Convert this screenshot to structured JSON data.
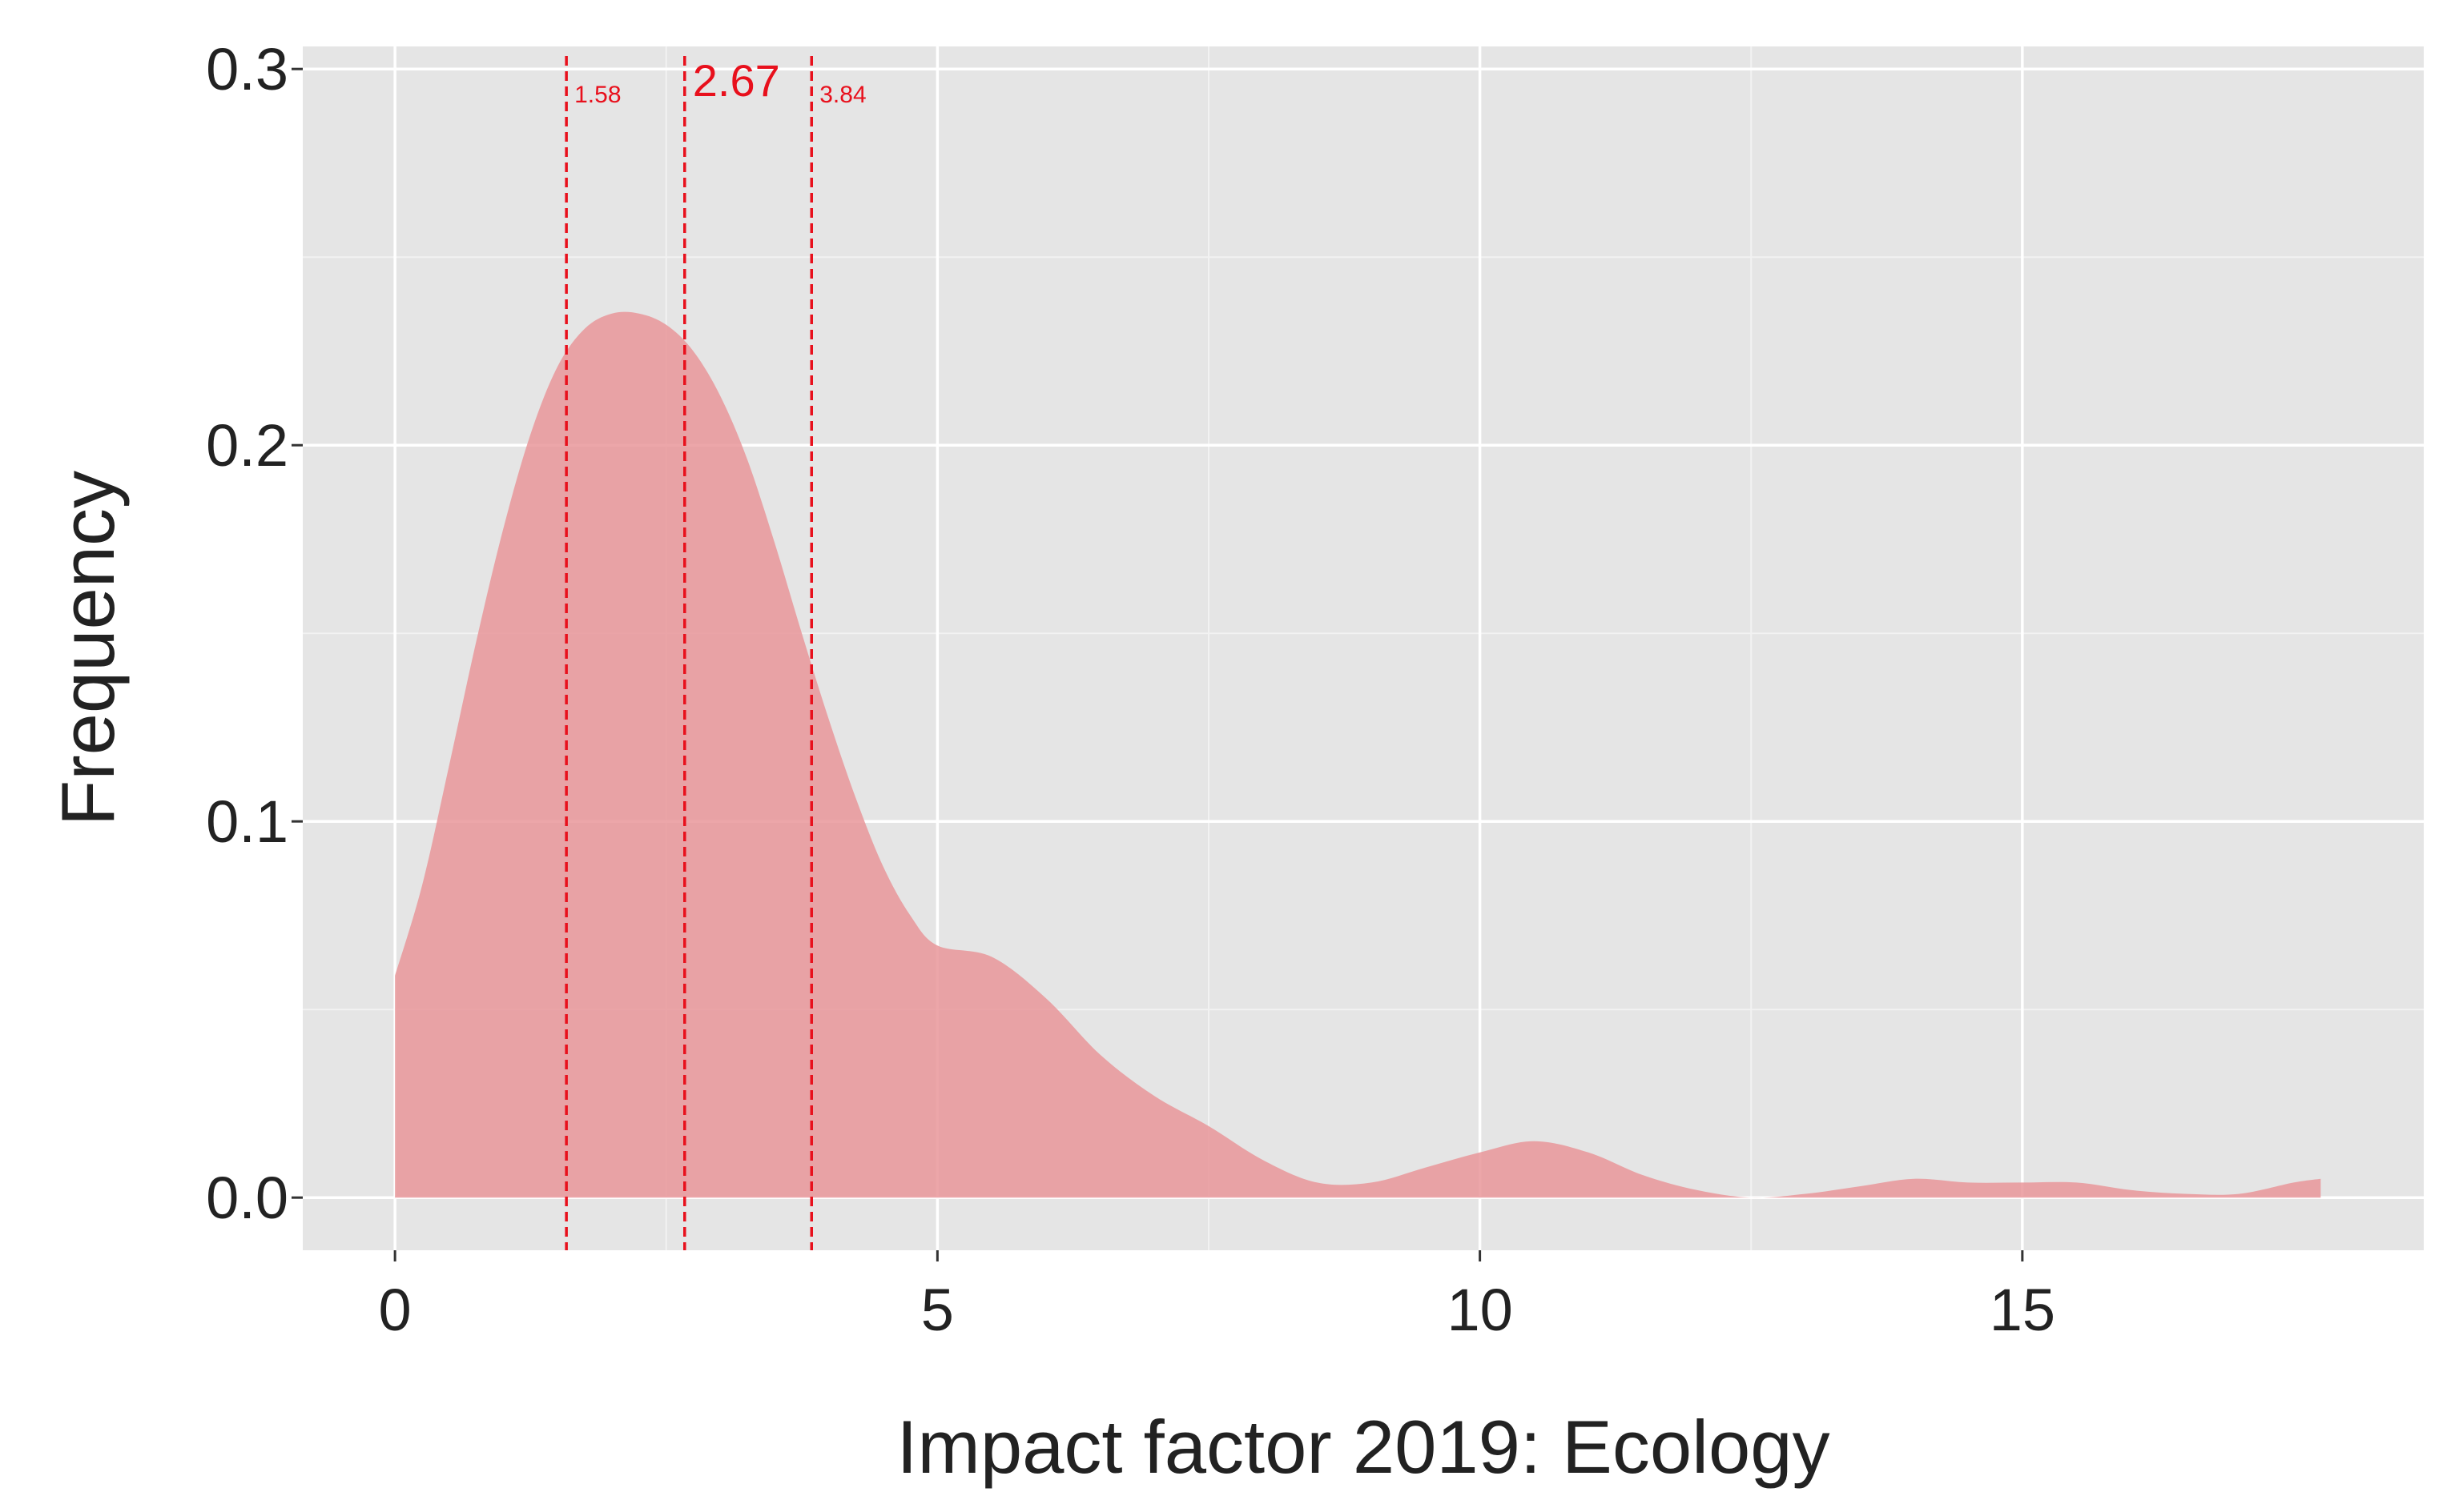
{
  "chart_data": {
    "type": "area",
    "title": "",
    "xlabel": "Impact factor 2019: Ecology",
    "ylabel": "Frequency",
    "xlim": [
      -0.85,
      18.7
    ],
    "ylim": [
      -0.014,
      0.306
    ],
    "x_ticks": [
      0,
      5,
      10,
      15
    ],
    "x_tick_labels": [
      "0",
      "5",
      "10",
      "15"
    ],
    "y_ticks": [
      0.0,
      0.1,
      0.2,
      0.3
    ],
    "y_tick_labels": [
      "0.0",
      "0.1",
      "0.2",
      "0.3"
    ],
    "grid": true,
    "legend": "none",
    "colors": {
      "panel_background": "#e5e5e5",
      "grid_major": "#ffffff",
      "grid_minor": "#f2f2f2",
      "fill": "#e9969a",
      "reference_lines": "#e8101c"
    },
    "series": [
      {
        "x": [
          0,
          0.25,
          0.5,
          0.75,
          1.0,
          1.25,
          1.5,
          1.75,
          2.0,
          2.25,
          2.5,
          2.75,
          3.0,
          3.25,
          3.5,
          3.75,
          4.0,
          4.25,
          4.5,
          4.75,
          5.0,
          5.5,
          6.0,
          6.5,
          7.0,
          7.5,
          8.0,
          8.5,
          9.0,
          9.5,
          10.0,
          10.5,
          11.0,
          11.5,
          12.0,
          12.5,
          13.0,
          13.5,
          14.0,
          14.5,
          15.0,
          15.5,
          16.0,
          16.5,
          17.0,
          17.5,
          17.75
        ],
        "values": [
          0.059,
          0.083,
          0.115,
          0.148,
          0.178,
          0.203,
          0.221,
          0.231,
          0.235,
          0.235,
          0.232,
          0.225,
          0.213,
          0.196,
          0.174,
          0.15,
          0.127,
          0.106,
          0.088,
          0.075,
          0.067,
          0.064,
          0.053,
          0.038,
          0.027,
          0.019,
          0.01,
          0.004,
          0.004,
          0.008,
          0.012,
          0.015,
          0.012,
          0.006,
          0.002,
          0.0,
          0.001,
          0.003,
          0.005,
          0.004,
          0.004,
          0.004,
          0.002,
          0.001,
          0.001,
          0.004,
          0.005
        ]
      }
    ],
    "reference_lines": [
      {
        "x": 1.58,
        "label": "1.58"
      },
      {
        "x": 2.67,
        "label": "2.67"
      },
      {
        "x": 3.84,
        "label": "3.84"
      }
    ]
  }
}
